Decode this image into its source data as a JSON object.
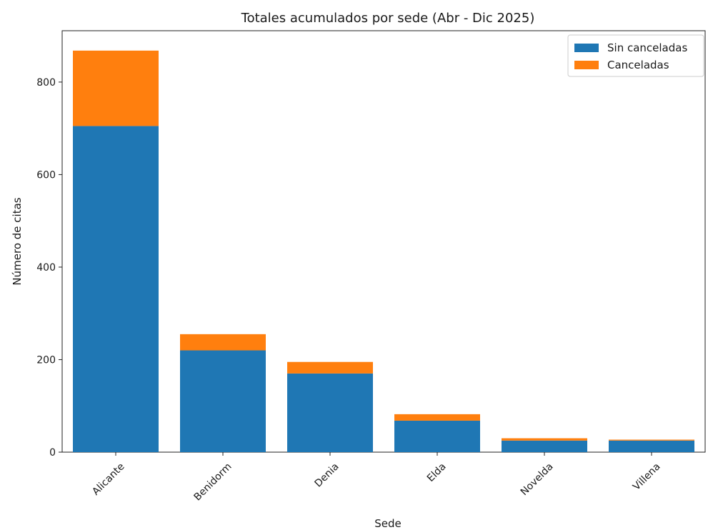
{
  "chart_data": {
    "type": "bar",
    "stacked": true,
    "title": "Totales acumulados por sede (Abr - Dic 2025)",
    "xlabel": "Sede",
    "ylabel": "Número de citas",
    "categories": [
      "Alicante",
      "Benidorm",
      "Denia",
      "Elda",
      "Novelda",
      "Villena"
    ],
    "series": [
      {
        "name": "Sin canceladas",
        "values": [
          705,
          220,
          170,
          68,
          25,
          25
        ],
        "color": "#1f77b4"
      },
      {
        "name": "Canceladas",
        "values": [
          163,
          35,
          25,
          14,
          5,
          2
        ],
        "color": "#ff7f0e"
      }
    ],
    "ylim": [
      0,
      911
    ],
    "yticks": [
      0,
      200,
      400,
      600,
      800
    ],
    "grid": false,
    "legend_position": "top-right",
    "xtick_rotation": -45
  }
}
